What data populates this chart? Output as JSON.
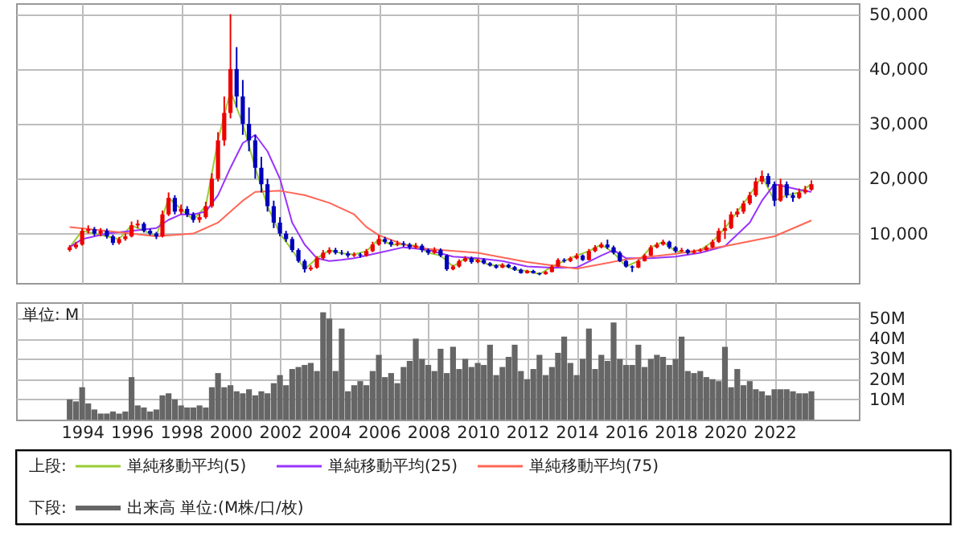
{
  "chart_data": [
    {
      "type": "candlestick",
      "x": [
        "1993-07",
        "1993-10",
        "1994-01",
        "1994-04",
        "1994-07",
        "1994-10",
        "1995-01",
        "1995-04",
        "1995-07",
        "1995-10",
        "1996-01",
        "1996-04",
        "1996-07",
        "1996-10",
        "1997-01",
        "1997-04",
        "1997-07",
        "1997-10",
        "1998-01",
        "1998-04",
        "1998-07",
        "1998-10",
        "1999-01",
        "1999-04",
        "1999-07",
        "1999-10",
        "2000-01",
        "2000-04",
        "2000-07",
        "2000-10",
        "2001-01",
        "2001-04",
        "2001-07",
        "2001-10",
        "2002-01",
        "2002-04",
        "2002-07",
        "2002-10",
        "2003-01",
        "2003-04",
        "2003-07",
        "2003-10",
        "2004-01",
        "2004-04",
        "2004-07",
        "2004-10",
        "2005-01",
        "2005-04",
        "2005-07",
        "2005-10",
        "2006-01",
        "2006-04",
        "2006-07",
        "2006-10",
        "2007-01",
        "2007-04",
        "2007-07",
        "2007-10",
        "2008-01",
        "2008-04",
        "2008-07",
        "2008-10",
        "2009-01",
        "2009-04",
        "2009-07",
        "2009-10",
        "2010-01",
        "2010-04",
        "2010-07",
        "2010-10",
        "2011-01",
        "2011-04",
        "2011-07",
        "2011-10",
        "2012-01",
        "2012-04",
        "2012-07",
        "2012-10",
        "2013-01",
        "2013-04",
        "2013-07",
        "2013-10",
        "2014-01",
        "2014-04",
        "2014-07",
        "2014-10",
        "2015-01",
        "2015-04",
        "2015-07",
        "2015-10",
        "2016-01",
        "2016-04",
        "2016-07",
        "2016-10",
        "2017-01",
        "2017-04",
        "2017-07",
        "2017-10",
        "2018-01",
        "2018-04",
        "2018-07",
        "2018-10",
        "2019-01",
        "2019-04",
        "2019-07",
        "2019-10",
        "2020-01",
        "2020-04",
        "2020-07",
        "2020-10",
        "2021-01",
        "2021-04",
        "2021-07",
        "2021-10",
        "2022-01",
        "2022-04",
        "2022-07",
        "2022-10",
        "2023-01",
        "2023-04",
        "2023-07"
      ],
      "ohlc": [
        [
          7000,
          7900,
          6700,
          7500
        ],
        [
          7500,
          8500,
          7200,
          8000
        ],
        [
          8000,
          11000,
          7800,
          10500
        ],
        [
          10500,
          11500,
          10000,
          10800
        ],
        [
          10800,
          11200,
          9600,
          10000
        ],
        [
          10000,
          11000,
          9500,
          10500
        ],
        [
          10500,
          10900,
          9100,
          9500
        ],
        [
          9500,
          9800,
          7900,
          8300
        ],
        [
          8300,
          9400,
          8000,
          9000
        ],
        [
          9000,
          10000,
          8700,
          9500
        ],
        [
          9500,
          12200,
          9300,
          11500
        ],
        [
          11500,
          12500,
          11000,
          11800
        ],
        [
          11800,
          12100,
          10200,
          10500
        ],
        [
          10500,
          10900,
          9700,
          10000
        ],
        [
          10000,
          10300,
          9000,
          9500
        ],
        [
          9500,
          14200,
          9300,
          13500
        ],
        [
          13500,
          17500,
          13200,
          16500
        ],
        [
          16500,
          17000,
          13500,
          14000
        ],
        [
          14000,
          15300,
          13500,
          14500
        ],
        [
          14500,
          15000,
          13000,
          13500
        ],
        [
          13500,
          13900,
          12000,
          12500
        ],
        [
          12500,
          13600,
          12000,
          13000
        ],
        [
          13000,
          15800,
          12700,
          15000
        ],
        [
          15000,
          21000,
          14700,
          20000
        ],
        [
          20000,
          28500,
          19500,
          27000
        ],
        [
          27000,
          35000,
          26000,
          32000
        ],
        [
          32000,
          50000,
          31000,
          40000
        ],
        [
          40000,
          44000,
          33000,
          35000
        ],
        [
          35000,
          38000,
          28000,
          30000
        ],
        [
          30000,
          33000,
          25000,
          27000
        ],
        [
          27000,
          28000,
          20000,
          22000
        ],
        [
          22000,
          24000,
          17500,
          19000
        ],
        [
          19000,
          20000,
          14000,
          15000
        ],
        [
          15000,
          16000,
          11000,
          12000
        ],
        [
          12000,
          13000,
          9500,
          10000
        ],
        [
          10000,
          10500,
          8500,
          9000
        ],
        [
          9000,
          9400,
          6600,
          7000
        ],
        [
          7000,
          7300,
          4700,
          5000
        ],
        [
          5000,
          5300,
          2900,
          3500
        ],
        [
          3500,
          4200,
          3200,
          3800
        ],
        [
          3800,
          5900,
          3600,
          5500
        ],
        [
          5500,
          7000,
          5200,
          6500
        ],
        [
          6500,
          7500,
          6200,
          7000
        ],
        [
          7000,
          7400,
          6200,
          6500
        ],
        [
          6500,
          7000,
          6100,
          6400
        ],
        [
          6400,
          6800,
          5600,
          6000
        ],
        [
          6000,
          6600,
          5700,
          6200
        ],
        [
          6200,
          6500,
          5600,
          6000
        ],
        [
          6000,
          7200,
          5800,
          6800
        ],
        [
          6800,
          8500,
          6600,
          8000
        ],
        [
          8000,
          9700,
          7800,
          9000
        ],
        [
          9000,
          9400,
          8100,
          8500
        ],
        [
          8500,
          8900,
          7600,
          8000
        ],
        [
          8000,
          8700,
          7700,
          8200
        ],
        [
          8200,
          8600,
          7600,
          8000
        ],
        [
          8000,
          8300,
          7100,
          7500
        ],
        [
          7500,
          8300,
          7200,
          7800
        ],
        [
          7800,
          8100,
          6600,
          7000
        ],
        [
          7000,
          7300,
          6100,
          6500
        ],
        [
          6500,
          7500,
          6300,
          7000
        ],
        [
          7000,
          7300,
          5700,
          6000
        ],
        [
          6000,
          6200,
          3200,
          3500
        ],
        [
          3500,
          4300,
          3300,
          4000
        ],
        [
          4000,
          5300,
          3800,
          5000
        ],
        [
          5000,
          5900,
          4800,
          5500
        ],
        [
          5500,
          5800,
          4500,
          4800
        ],
        [
          4800,
          5500,
          4600,
          5200
        ],
        [
          5200,
          5500,
          4400,
          4600
        ],
        [
          4600,
          4800,
          4000,
          4200
        ],
        [
          4200,
          4400,
          3600,
          3800
        ],
        [
          3800,
          4600,
          3700,
          4300
        ],
        [
          4300,
          4500,
          3700,
          3900
        ],
        [
          3900,
          4100,
          3200,
          3400
        ],
        [
          3400,
          3600,
          2700,
          2800
        ],
        [
          2800,
          3400,
          2700,
          3200
        ],
        [
          3200,
          3400,
          2700,
          2800
        ],
        [
          2800,
          2900,
          2400,
          2600
        ],
        [
          2600,
          3200,
          2500,
          3000
        ],
        [
          3000,
          4300,
          2900,
          4000
        ],
        [
          4000,
          5500,
          3900,
          5200
        ],
        [
          5200,
          5500,
          4700,
          5000
        ],
        [
          5000,
          5800,
          4800,
          5500
        ],
        [
          5500,
          6400,
          5300,
          6000
        ],
        [
          6000,
          6200,
          5000,
          5200
        ],
        [
          5200,
          7200,
          5100,
          6800
        ],
        [
          6800,
          7900,
          6600,
          7500
        ],
        [
          7500,
          8400,
          7300,
          8000
        ],
        [
          8000,
          8900,
          7200,
          7500
        ],
        [
          7500,
          7800,
          6200,
          6500
        ],
        [
          6500,
          6800,
          4800,
          5000
        ],
        [
          5000,
          5200,
          3800,
          4000
        ],
        [
          4000,
          4200,
          3000,
          3800
        ],
        [
          3800,
          5300,
          3700,
          5000
        ],
        [
          5000,
          6300,
          4900,
          6000
        ],
        [
          6000,
          7900,
          5900,
          7500
        ],
        [
          7500,
          8400,
          7300,
          8000
        ],
        [
          8000,
          8900,
          7800,
          8500
        ],
        [
          8500,
          8700,
          7200,
          7500
        ],
        [
          7500,
          7700,
          6500,
          6800
        ],
        [
          6800,
          7400,
          6600,
          7000
        ],
        [
          7000,
          7200,
          6200,
          6500
        ],
        [
          6500,
          7100,
          6300,
          6800
        ],
        [
          6800,
          7300,
          6600,
          7000
        ],
        [
          7000,
          7800,
          6800,
          7500
        ],
        [
          7500,
          8900,
          7300,
          8500
        ],
        [
          8500,
          11000,
          8300,
          10500
        ],
        [
          10500,
          12500,
          9000,
          11000
        ],
        [
          11000,
          14000,
          10800,
          13500
        ],
        [
          13500,
          14600,
          13000,
          14000
        ],
        [
          14000,
          16000,
          13600,
          15500
        ],
        [
          15500,
          17600,
          15200,
          17000
        ],
        [
          17000,
          20200,
          16700,
          19500
        ],
        [
          19500,
          21500,
          19000,
          20500
        ],
        [
          20500,
          21000,
          18500,
          19000
        ],
        [
          19000,
          19500,
          15000,
          16000
        ],
        [
          16000,
          20000,
          15800,
          19000
        ],
        [
          19000,
          19500,
          16500,
          17000
        ],
        [
          17000,
          17500,
          15800,
          16500
        ],
        [
          16500,
          18200,
          16300,
          17500
        ],
        [
          17500,
          18700,
          17200,
          18000
        ],
        [
          18000,
          19700,
          17800,
          19000
        ]
      ],
      "colors": [
        "#ee0000",
        "#ee0000",
        "#ee0000",
        "#ee0000",
        "#0000bb",
        "#ee0000",
        "#0000bb",
        "#0000bb",
        "#ee0000",
        "#ee0000",
        "#ee0000",
        "#ee0000",
        "#0000bb",
        "#0000bb",
        "#0000bb",
        "#ee0000",
        "#ee0000",
        "#0000bb",
        "#ee0000",
        "#0000bb",
        "#0000bb",
        "#ee0000",
        "#ee0000",
        "#ee0000",
        "#ee0000",
        "#ee0000",
        "#ee0000",
        "#0000bb",
        "#0000bb",
        "#0000bb",
        "#0000bb",
        "#0000bb",
        "#0000bb",
        "#0000bb",
        "#0000bb",
        "#0000bb",
        "#0000bb",
        "#0000bb",
        "#0000bb",
        "#ee0000",
        "#ee0000",
        "#ee0000",
        "#ee0000",
        "#0000bb",
        "#0000bb",
        "#0000bb",
        "#ee0000",
        "#0000bb",
        "#ee0000",
        "#ee0000",
        "#ee0000",
        "#0000bb",
        "#0000bb",
        "#ee0000",
        "#0000bb",
        "#0000bb",
        "#ee0000",
        "#0000bb",
        "#0000bb",
        "#ee0000",
        "#0000bb",
        "#0000bb",
        "#ee0000",
        "#ee0000",
        "#ee0000",
        "#0000bb",
        "#ee0000",
        "#0000bb",
        "#0000bb",
        "#0000bb",
        "#ee0000",
        "#0000bb",
        "#0000bb",
        "#0000bb",
        "#ee0000",
        "#0000bb",
        "#0000bb",
        "#ee0000",
        "#ee0000",
        "#ee0000",
        "#0000bb",
        "#ee0000",
        "#ee0000",
        "#0000bb",
        "#ee0000",
        "#ee0000",
        "#ee0000",
        "#0000bb",
        "#0000bb",
        "#0000bb",
        "#0000bb",
        "#0000bb",
        "#ee0000",
        "#ee0000",
        "#ee0000",
        "#ee0000",
        "#ee0000",
        "#0000bb",
        "#0000bb",
        "#ee0000",
        "#0000bb",
        "#ee0000",
        "#ee0000",
        "#ee0000",
        "#ee0000",
        "#ee0000",
        "#ee0000",
        "#ee0000",
        "#ee0000",
        "#ee0000",
        "#ee0000",
        "#ee0000",
        "#ee0000",
        "#0000bb",
        "#0000bb",
        "#ee0000",
        "#0000bb",
        "#0000bb",
        "#ee0000",
        "#ee0000",
        "#ee0000"
      ],
      "series": [
        {
          "type": "line",
          "name": "単純移動平均(5)",
          "color": "#99cc33",
          "x": [
            "1993-07",
            "1994-01",
            "1994-07",
            "1995-01",
            "1995-07",
            "1996-01",
            "1996-07",
            "1997-01",
            "1997-07",
            "1998-01",
            "1998-07",
            "1999-01",
            "1999-07",
            "2000-01",
            "2000-07",
            "2001-01",
            "2001-07",
            "2002-01",
            "2002-07",
            "2003-01",
            "2003-07",
            "2004-01",
            "2004-07",
            "2005-01",
            "2005-07",
            "2006-01",
            "2006-07",
            "2007-01",
            "2007-07",
            "2008-01",
            "2008-07",
            "2009-01",
            "2009-07",
            "2010-01",
            "2010-07",
            "2011-01",
            "2011-07",
            "2012-01",
            "2012-07",
            "2013-01",
            "2013-07",
            "2014-01",
            "2014-07",
            "2015-01",
            "2015-07",
            "2016-01",
            "2016-07",
            "2017-01",
            "2017-07",
            "2018-01",
            "2018-07",
            "2019-01",
            "2019-07",
            "2020-01",
            "2020-07",
            "2021-01",
            "2021-07",
            "2022-01",
            "2022-07",
            "2023-01",
            "2023-07"
          ],
          "values": [
            7500,
            10500,
            10000,
            9500,
            9000,
            11500,
            10500,
            9500,
            16500,
            14500,
            12500,
            15000,
            27000,
            36000,
            30000,
            22000,
            15000,
            10000,
            7000,
            3500,
            5500,
            7000,
            6400,
            6200,
            6800,
            9000,
            8000,
            8000,
            7800,
            6500,
            6000,
            4000,
            5500,
            5200,
            4200,
            4300,
            3400,
            3200,
            2600,
            4000,
            5000,
            6000,
            6800,
            8000,
            6500,
            4000,
            5000,
            7500,
            8500,
            6800,
            6500,
            7000,
            8500,
            11000,
            14000,
            17000,
            20500,
            16000,
            17000,
            17500,
            19000
          ]
        },
        {
          "type": "line",
          "name": "単純移動平均(25)",
          "color": "#9933ff",
          "x": [
            "1993-07",
            "1994-01",
            "1995-01",
            "1996-01",
            "1997-01",
            "1997-07",
            "1998-01",
            "1998-07",
            "1999-01",
            "1999-07",
            "2000-01",
            "2000-07",
            "2001-01",
            "2001-07",
            "2002-01",
            "2002-07",
            "2003-01",
            "2003-07",
            "2004-01",
            "2004-07",
            "2005-01",
            "2006-01",
            "2007-01",
            "2008-01",
            "2009-01",
            "2010-01",
            "2011-01",
            "2012-01",
            "2013-01",
            "2014-01",
            "2015-01",
            "2015-07",
            "2016-01",
            "2017-01",
            "2018-01",
            "2019-01",
            "2020-01",
            "2021-01",
            "2021-07",
            "2022-01",
            "2022-07",
            "2023-01",
            "2023-07"
          ],
          "values": [
            7500,
            9000,
            10000,
            10500,
            11000,
            12500,
            13500,
            13500,
            14000,
            17000,
            22000,
            26500,
            28000,
            25000,
            20000,
            12000,
            8000,
            5500,
            5000,
            5200,
            5500,
            6500,
            7500,
            7000,
            5800,
            5500,
            5000,
            4000,
            3800,
            3800,
            6000,
            7000,
            5500,
            5500,
            5800,
            6500,
            7700,
            12000,
            16000,
            19000,
            18500,
            18000,
            17600
          ]
        },
        {
          "type": "line",
          "name": "単純移動平均(75)",
          "color": "#ff6655",
          "x": [
            "1993-07",
            "1995-01",
            "1997-01",
            "1998-07",
            "1999-07",
            "2000-07",
            "2001-01",
            "2002-01",
            "2003-01",
            "2004-01",
            "2005-01",
            "2005-07",
            "2006-01",
            "2007-01",
            "2008-01",
            "2010-01",
            "2012-01",
            "2014-01",
            "2016-01",
            "2018-01",
            "2020-01",
            "2022-01",
            "2023-07"
          ],
          "values": [
            11200,
            10500,
            9500,
            10000,
            12000,
            16000,
            17600,
            17800,
            17000,
            15600,
            13500,
            11200,
            9700,
            8000,
            7200,
            6500,
            4800,
            3600,
            5300,
            6300,
            7700,
            9500,
            12400
          ]
        }
      ],
      "xlim": [
        "1991-05",
        "2025-06"
      ],
      "xticks": [
        "1994",
        "1996",
        "1998",
        "2000",
        "2002",
        "2004",
        "2006",
        "2008",
        "2010",
        "2012",
        "2014",
        "2016",
        "2018",
        "2020",
        "2022"
      ],
      "ylim": [
        1000,
        52000
      ],
      "yticks": [
        {
          "value": 10000,
          "label": "10,000"
        },
        {
          "value": 20000,
          "label": "20,000"
        },
        {
          "value": 30000,
          "label": "30,000"
        },
        {
          "value": 40000,
          "label": "40,000"
        },
        {
          "value": 50000,
          "label": "50,000"
        }
      ],
      "grid": true,
      "tick_labels": "y",
      "legend": "bottom",
      "legend_title": "上段:"
    },
    {
      "type": "bar",
      "x": [
        "1993-07",
        "1993-10",
        "1994-01",
        "1994-04",
        "1994-07",
        "1994-10",
        "1995-01",
        "1995-04",
        "1995-07",
        "1995-10",
        "1996-01",
        "1996-04",
        "1996-07",
        "1996-10",
        "1997-01",
        "1997-04",
        "1997-07",
        "1997-10",
        "1998-01",
        "1998-04",
        "1998-07",
        "1998-10",
        "1999-01",
        "1999-04",
        "1999-07",
        "1999-10",
        "2000-01",
        "2000-04",
        "2000-07",
        "2000-10",
        "2001-01",
        "2001-04",
        "2001-07",
        "2001-10",
        "2002-01",
        "2002-04",
        "2002-07",
        "2002-10",
        "2003-01",
        "2003-04",
        "2003-07",
        "2003-10",
        "2004-01",
        "2004-04",
        "2004-07",
        "2004-10",
        "2005-01",
        "2005-04",
        "2005-07",
        "2005-10",
        "2006-01",
        "2006-04",
        "2006-07",
        "2006-10",
        "2007-01",
        "2007-04",
        "2007-07",
        "2007-10",
        "2008-01",
        "2008-04",
        "2008-07",
        "2008-10",
        "2009-01",
        "2009-04",
        "2009-07",
        "2009-10",
        "2010-01",
        "2010-04",
        "2010-07",
        "2010-10",
        "2011-01",
        "2011-04",
        "2011-07",
        "2011-10",
        "2012-01",
        "2012-04",
        "2012-07",
        "2012-10",
        "2013-01",
        "2013-04",
        "2013-07",
        "2013-10",
        "2014-01",
        "2014-04",
        "2014-07",
        "2014-10",
        "2015-01",
        "2015-04",
        "2015-07",
        "2015-10",
        "2016-01",
        "2016-04",
        "2016-07",
        "2016-10",
        "2017-01",
        "2017-04",
        "2017-07",
        "2017-10",
        "2018-01",
        "2018-04",
        "2018-07",
        "2018-10",
        "2019-01",
        "2019-04",
        "2019-07",
        "2019-10",
        "2020-01",
        "2020-04",
        "2020-07",
        "2020-10",
        "2021-01",
        "2021-04",
        "2021-07",
        "2021-10",
        "2022-01",
        "2022-04",
        "2022-07",
        "2022-10",
        "2023-01",
        "2023-04",
        "2023-07"
      ],
      "series": [
        {
          "name": "出来高 単位:(M株/口/枚)",
          "color": "#666666",
          "values": [
            10,
            9,
            16,
            8,
            5,
            3,
            3,
            4,
            3,
            4,
            21,
            7,
            6,
            4,
            5,
            12,
            13,
            10,
            7,
            6,
            6,
            7,
            6,
            16,
            23,
            16,
            17,
            14,
            13,
            15,
            12,
            14,
            13,
            18,
            22,
            17,
            25,
            26,
            27,
            28,
            24,
            53,
            50,
            24,
            45,
            14,
            17,
            19,
            17,
            24,
            32,
            21,
            23,
            18,
            26,
            29,
            40,
            30,
            27,
            24,
            35,
            23,
            36,
            25,
            30,
            26,
            28,
            27,
            37,
            22,
            26,
            31,
            37,
            24,
            20,
            25,
            32,
            22,
            26,
            33,
            41,
            28,
            22,
            30,
            45,
            25,
            32,
            29,
            48,
            30,
            27,
            27,
            37,
            26,
            30,
            32,
            31,
            27,
            30,
            41,
            24,
            23,
            24,
            21,
            20,
            19,
            36,
            16,
            25,
            17,
            19,
            15,
            14,
            12,
            15,
            15,
            15,
            14,
            13,
            13,
            14
          ]
        }
      ],
      "ylabel": "単位: M",
      "xlim": [
        "1991-05",
        "2025-06"
      ],
      "xticks": [
        "1994",
        "1996",
        "1998",
        "2000",
        "2002",
        "2004",
        "2006",
        "2008",
        "2010",
        "2012",
        "2014",
        "2016",
        "2018",
        "2020",
        "2022"
      ],
      "ylim": [
        0,
        58
      ],
      "yticks": [
        {
          "value": 10,
          "label": "10M"
        },
        {
          "value": 20,
          "label": "20M"
        },
        {
          "value": 30,
          "label": "30M"
        },
        {
          "value": 40,
          "label": "40M"
        },
        {
          "value": 50,
          "label": "50M"
        }
      ],
      "grid": true,
      "legend": "bottom",
      "legend_title": "下段:"
    }
  ]
}
